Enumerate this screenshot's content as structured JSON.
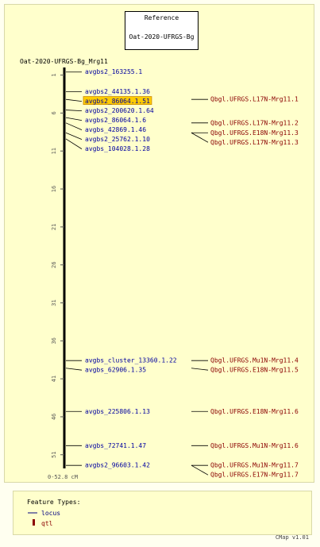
{
  "reference": {
    "heading": "Reference",
    "map_name": "Oat-2020-UFRGS-Bg"
  },
  "map": {
    "name": "Oat-2020-UFRGS-Bg_Mrg11",
    "range_label": "0-52.8 cM",
    "min": 0,
    "max": 52.8,
    "ticks": [
      1,
      6,
      11,
      16,
      21,
      26,
      31,
      36,
      41,
      46,
      51
    ]
  },
  "loci": [
    {
      "name": "avgbs2_163255.1",
      "pos": 0.6,
      "highlight": false
    },
    {
      "name": "avgbs2_44135.1.36",
      "pos": 3.2,
      "highlight": false
    },
    {
      "name": "avgbs2_86064.1.51",
      "pos": 4.2,
      "highlight": true
    },
    {
      "name": "avgbs2_200620.1.64",
      "pos": 5.6,
      "highlight": false
    },
    {
      "name": "avgbs2_86064.1.6",
      "pos": 6.6,
      "highlight": false
    },
    {
      "name": "avgbs_42869.1.46",
      "pos": 7.3,
      "highlight": false
    },
    {
      "name": "avgbs2_25762.1.10",
      "pos": 8.6,
      "highlight": false
    },
    {
      "name": "avgbs_104028.1.28",
      "pos": 9.4,
      "highlight": false
    },
    {
      "name": "avgbs_cluster_13360.1.22",
      "pos": 38.6,
      "highlight": false
    },
    {
      "name": "avgbs_62906.1.35",
      "pos": 39.6,
      "highlight": false
    },
    {
      "name": "avgbs_225806.1.13",
      "pos": 45.3,
      "highlight": false
    },
    {
      "name": "avgbs_72741.1.47",
      "pos": 49.8,
      "highlight": false
    },
    {
      "name": "avgbs2_96603.1.42",
      "pos": 52.4,
      "highlight": false
    }
  ],
  "qtls": [
    {
      "name": "Qbgl.UFRGS.L17N-Mrg11.1",
      "pos": 4.2
    },
    {
      "name": "Qbgl.UFRGS.L17N-Mrg11.2",
      "pos": 7.3
    },
    {
      "name": "Qbgl.UFRGS.E18N-Mrg11.3",
      "pos": 8.6
    },
    {
      "name": "Qbgl.UFRGS.L17N-Mrg11.3",
      "pos": 8.6
    },
    {
      "name": "Qbgl.UFRGS.Mu1N-Mrg11.4",
      "pos": 38.6
    },
    {
      "name": "Qbgl.UFRGS.E18N-Mrg11.5",
      "pos": 39.6
    },
    {
      "name": "Qbgl.UFRGS.E18N-Mrg11.6",
      "pos": 45.3
    },
    {
      "name": "Qbgl.UFRGS.Mu1N-Mrg11.6",
      "pos": 49.8
    },
    {
      "name": "Qbgl.UFRGS.Mu1N-Mrg11.7",
      "pos": 52.4
    },
    {
      "name": "Qbgl.UFRGS.E17N-Mrg11.7",
      "pos": 52.4
    }
  ],
  "legend": {
    "title": "Feature Types:",
    "items": [
      {
        "label": "locus",
        "icon": "line-icon",
        "color": "#000080"
      },
      {
        "label": "qtl",
        "icon": "bar-icon",
        "color": "#8b0000"
      }
    ]
  },
  "footer": "CMap v1.01",
  "colors": {
    "locus": "#0000a0",
    "qtl": "#8b0000",
    "highlight_fill": "#ffcc00",
    "highlight_stroke": "#cc8800",
    "axis": "#000000"
  }
}
